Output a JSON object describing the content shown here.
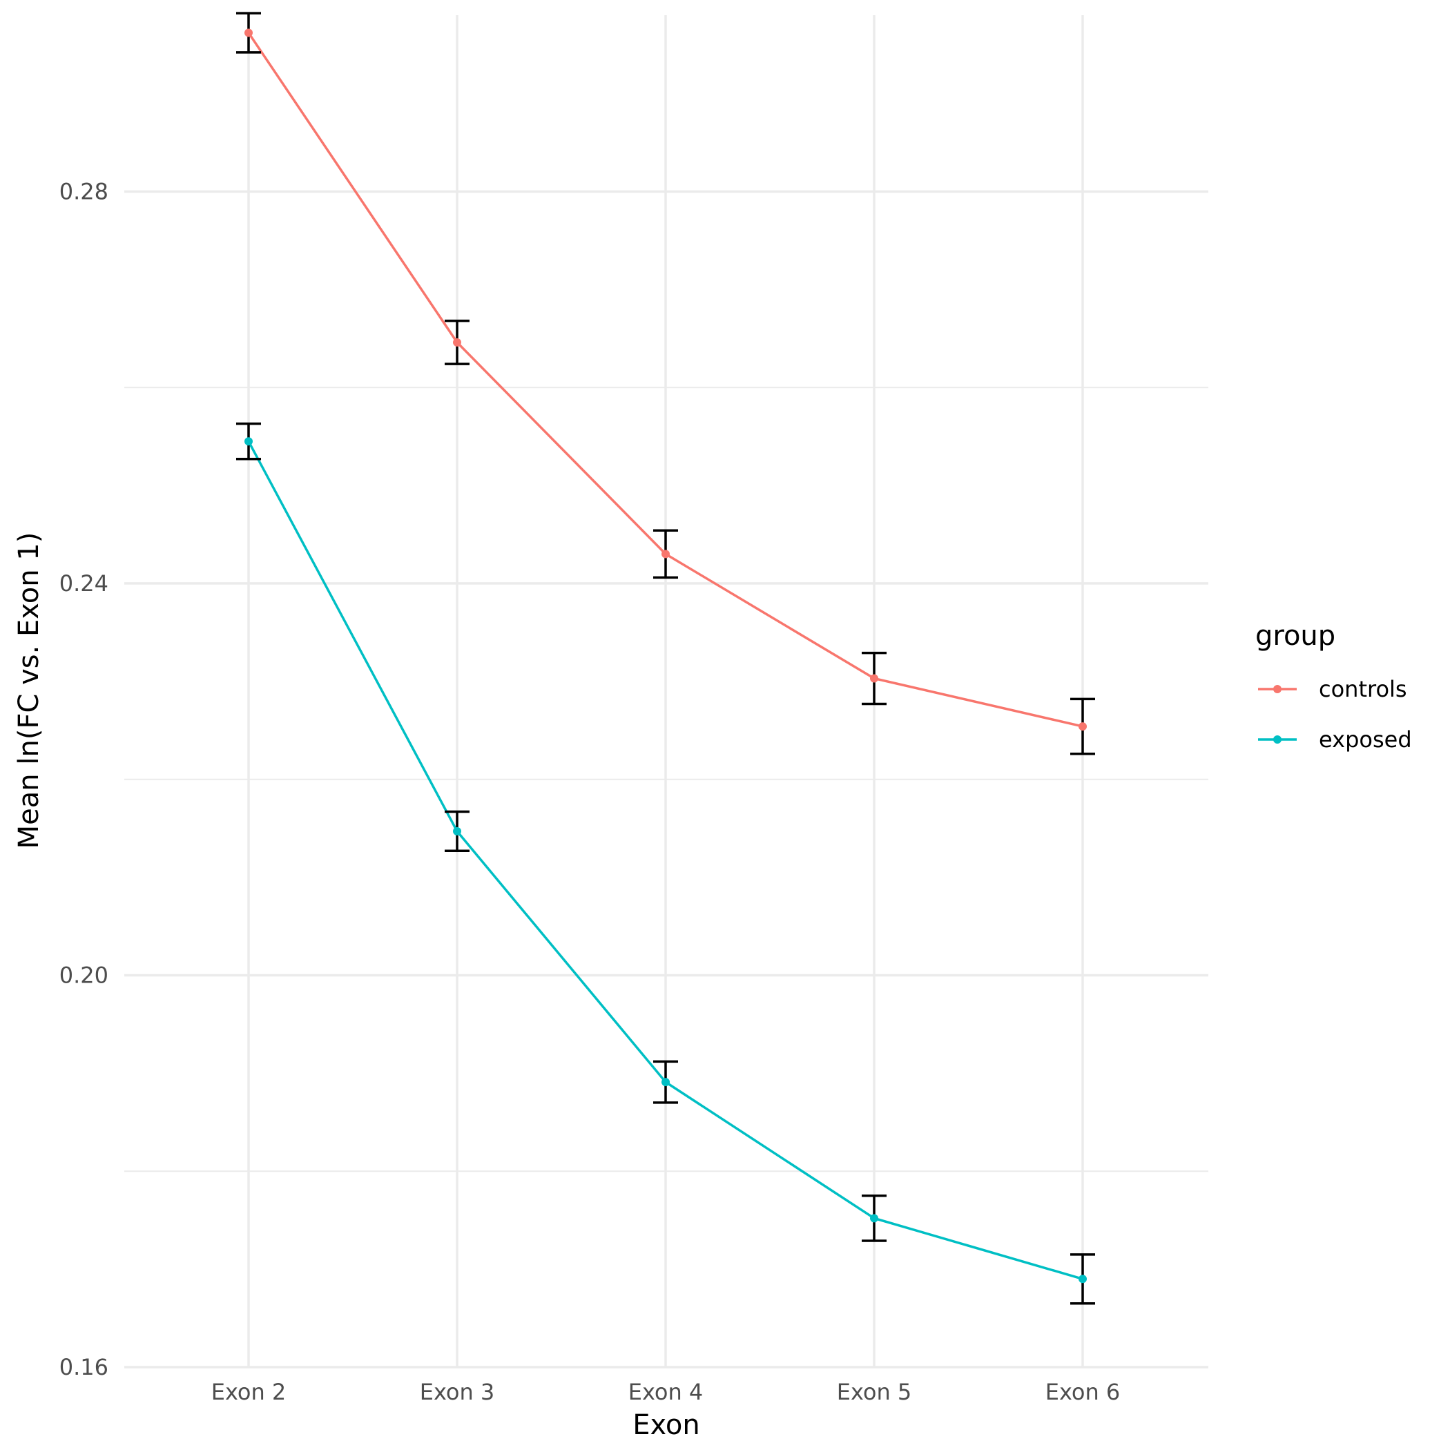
{
  "chart_data": {
    "type": "line",
    "title": "",
    "xlabel": "Exon",
    "ylabel": "Mean ln(FC vs. Exon 1)",
    "categories": [
      "Exon 2",
      "Exon 3",
      "Exon 4",
      "Exon 5",
      "Exon 6"
    ],
    "ylim": [
      0.16,
      0.298
    ],
    "yticks": [
      0.16,
      0.2,
      0.24,
      0.28
    ],
    "ytick_labels": [
      "0.16",
      "0.20",
      "0.24",
      "0.28"
    ],
    "grid": true,
    "legend": {
      "title": "group",
      "position": "right"
    },
    "series": [
      {
        "name": "controls",
        "color": "#F8766D",
        "values": [
          0.2962,
          0.2646,
          0.243,
          0.2303,
          0.2254
        ],
        "error": [
          0.002,
          0.0022,
          0.0024,
          0.0026,
          0.0028
        ]
      },
      {
        "name": "exposed",
        "color": "#00BFC4",
        "values": [
          0.2545,
          0.2147,
          0.1891,
          0.1752,
          0.169
        ],
        "error": [
          0.0018,
          0.002,
          0.0021,
          0.0023,
          0.0025
        ]
      }
    ]
  }
}
